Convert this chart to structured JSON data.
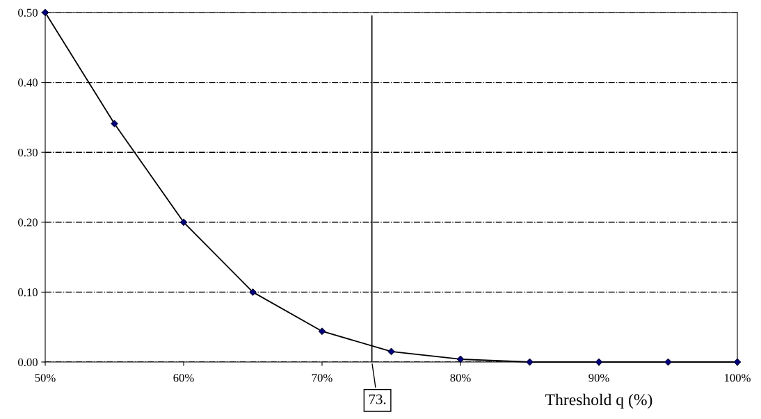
{
  "chart_data": {
    "type": "line",
    "xlabel": "Threshold q (%)",
    "x": [
      50,
      55,
      60,
      65,
      70,
      75,
      80,
      85,
      90,
      95,
      100
    ],
    "series": [
      {
        "color": "#000000",
        "values": [
          0.5,
          0.341,
          0.2,
          0.1,
          0.044,
          0.015,
          0.004,
          0.0,
          0.0,
          0.0,
          0.0
        ]
      }
    ],
    "xlim": [
      50,
      100
    ],
    "xticks": [
      {
        "value": 50,
        "label": "50%"
      },
      {
        "value": 60,
        "label": "60%"
      },
      {
        "value": 70,
        "label": "70%"
      },
      {
        "value": 80,
        "label": "80%"
      },
      {
        "value": 90,
        "label": "90%"
      },
      {
        "value": 100,
        "label": "100%"
      }
    ],
    "ylim": [
      0,
      0.5
    ],
    "yticks": [
      {
        "value": 0,
        "label": "0.00"
      },
      {
        "value": 0.1,
        "label": "0.10"
      },
      {
        "value": 0.2,
        "label": "0.20"
      },
      {
        "value": 0.3,
        "label": "0.30"
      },
      {
        "value": 0.4,
        "label": "0.40"
      },
      {
        "value": 0.5,
        "label": "0.50"
      }
    ],
    "ref_lines": [
      {
        "axis": "x",
        "value": 73.6,
        "color": "#000000"
      }
    ],
    "annotations": [
      "73."
    ],
    "grid": "y",
    "marker": "diamond",
    "line_style": "solid"
  }
}
